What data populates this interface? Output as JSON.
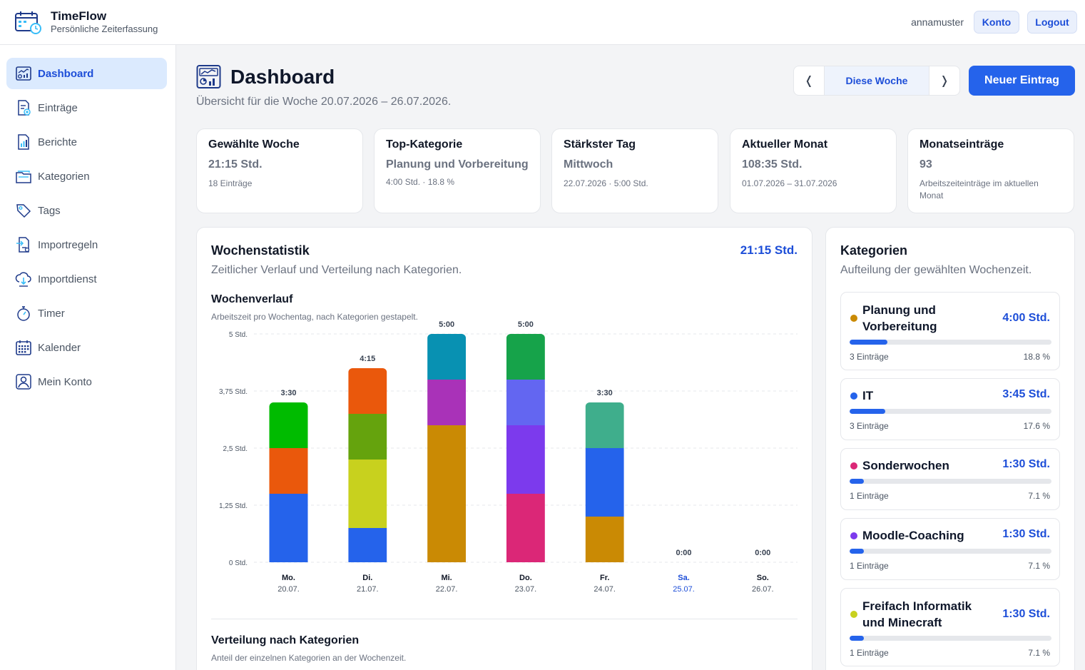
{
  "header": {
    "app_name": "TimeFlow",
    "app_subtitle": "Persönliche Zeiterfassung",
    "username": "annamuster",
    "konto_label": "Konto",
    "logout_label": "Logout"
  },
  "sidebar": {
    "items": [
      {
        "label": "Dashboard",
        "icon": "dashboard-icon",
        "active": true
      },
      {
        "label": "Einträge",
        "icon": "entries-icon"
      },
      {
        "label": "Berichte",
        "icon": "reports-icon"
      },
      {
        "label": "Kategorien",
        "icon": "categories-icon"
      },
      {
        "label": "Tags",
        "icon": "tag-icon"
      },
      {
        "label": "Importregeln",
        "icon": "import-rules-icon"
      },
      {
        "label": "Importdienst",
        "icon": "import-service-icon"
      },
      {
        "label": "Timer",
        "icon": "stopwatch-icon"
      },
      {
        "label": "Kalender",
        "icon": "calendar-icon"
      },
      {
        "label": "Mein Konto",
        "icon": "user-icon"
      }
    ]
  },
  "page": {
    "title": "Dashboard",
    "subtitle": "Übersicht für die Woche 20.07.2026 – 26.07.2026.",
    "week_nav": {
      "prev": "❬",
      "current": "Diese Woche",
      "next": "❭"
    },
    "new_entry_label": "Neuer Eintrag"
  },
  "stats": [
    {
      "label": "Gewählte Woche",
      "value": "21:15 Std.",
      "hint": "18 Einträge"
    },
    {
      "label": "Top-Kategorie",
      "value": "Planung und Vorbereitung",
      "hint": "4:00 Std. · 18.8 %"
    },
    {
      "label": "Stärkster Tag",
      "value": "Mittwoch",
      "hint": "22.07.2026 · 5:00 Std."
    },
    {
      "label": "Aktueller Monat",
      "value": "108:35 Std.",
      "hint": "01.07.2026 – 31.07.2026"
    },
    {
      "label": "Monatseinträge",
      "value": "93",
      "hint": "Arbeitszeiteinträge im aktuellen Monat"
    }
  ],
  "weekstats": {
    "title": "Wochenstatistik",
    "subtitle": "Zeitlicher Verlauf und Verteilung nach Kategorien.",
    "total": "21:15 Std.",
    "chart_title": "Wochenverlauf",
    "chart_subtitle": "Arbeitszeit pro Wochentag, nach Kategorien gestapelt.",
    "dist_title": "Verteilung nach Kategorien",
    "dist_subtitle": "Anteil der einzelnen Kategorien an der Wochenzeit."
  },
  "chart_data": {
    "type": "bar",
    "stacked": true,
    "unit": "Std.",
    "ylim": [
      0,
      5
    ],
    "yticks": [
      {
        "value": 0,
        "label": "0 Std."
      },
      {
        "value": 1.25,
        "label": "1,25 Std."
      },
      {
        "value": 2.5,
        "label": "2,5 Std."
      },
      {
        "value": 3.75,
        "label": "3,75 Std."
      },
      {
        "value": 5,
        "label": "5 Std."
      }
    ],
    "grid": true,
    "days": [
      {
        "day": "Mo.",
        "date": "20.07.",
        "total_label": "3:30",
        "weekend": false,
        "segments": [
          {
            "value": 1.5,
            "color": "#2563eb"
          },
          {
            "value": 1.0,
            "color": "#ea580c"
          },
          {
            "value": 1.0,
            "color": "#00bb00"
          }
        ]
      },
      {
        "day": "Di.",
        "date": "21.07.",
        "total_label": "4:15",
        "weekend": false,
        "segments": [
          {
            "value": 0.75,
            "color": "#2563eb"
          },
          {
            "value": 1.5,
            "color": "#c8d11e"
          },
          {
            "value": 1.0,
            "color": "#65a30d"
          },
          {
            "value": 1.0,
            "color": "#ea580c"
          }
        ]
      },
      {
        "day": "Mi.",
        "date": "22.07.",
        "total_label": "5:00",
        "weekend": false,
        "segments": [
          {
            "value": 3.0,
            "color": "#ca8a04"
          },
          {
            "value": 1.0,
            "color": "#a932b8"
          },
          {
            "value": 1.0,
            "color": "#0891b2"
          }
        ]
      },
      {
        "day": "Do.",
        "date": "23.07.",
        "total_label": "5:00",
        "weekend": false,
        "segments": [
          {
            "value": 1.5,
            "color": "#db2777"
          },
          {
            "value": 1.5,
            "color": "#7c3aed"
          },
          {
            "value": 1.0,
            "color": "#6366f1"
          },
          {
            "value": 1.0,
            "color": "#16a34a"
          }
        ]
      },
      {
        "day": "Fr.",
        "date": "24.07.",
        "total_label": "3:30",
        "weekend": false,
        "segments": [
          {
            "value": 1.0,
            "color": "#ca8a04"
          },
          {
            "value": 1.5,
            "color": "#2563eb"
          },
          {
            "value": 1.0,
            "color": "#3fae8c"
          }
        ]
      },
      {
        "day": "Sa.",
        "date": "25.07.",
        "total_label": "0:00",
        "weekend": true,
        "segments": []
      },
      {
        "day": "So.",
        "date": "26.07.",
        "total_label": "0:00",
        "weekend": false,
        "segments": []
      }
    ]
  },
  "categories": {
    "title": "Kategorien",
    "subtitle": "Aufteilung der gewählten Wochenzeit.",
    "items": [
      {
        "name": "Planung und Vorbereitung",
        "color": "#ca8a04",
        "duration": "4:00 Std.",
        "count": "3 Einträge",
        "percent_label": "18.8 %",
        "percent": 18.8
      },
      {
        "name": "IT",
        "color": "#2563eb",
        "duration": "3:45 Std.",
        "count": "3 Einträge",
        "percent_label": "17.6 %",
        "percent": 17.6
      },
      {
        "name": "Sonderwochen",
        "color": "#db2777",
        "duration": "1:30 Std.",
        "count": "1 Einträge",
        "percent_label": "7.1 %",
        "percent": 7.1
      },
      {
        "name": "Moodle-Coaching",
        "color": "#7c3aed",
        "duration": "1:30 Std.",
        "count": "1 Einträge",
        "percent_label": "7.1 %",
        "percent": 7.1
      },
      {
        "name": "Freifach Informatik und Minecraft",
        "color": "#c8d11e",
        "duration": "1:30 Std.",
        "count": "1 Einträge",
        "percent_label": "7.1 %",
        "percent": 7.1
      }
    ]
  }
}
